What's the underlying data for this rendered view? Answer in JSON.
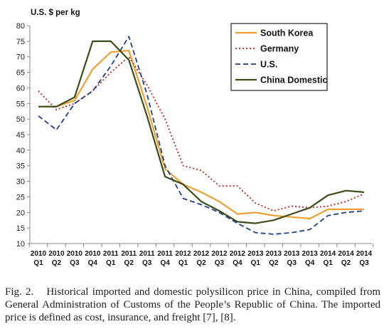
{
  "chart_data": {
    "type": "line",
    "ylabel": "U.S. $ per kg",
    "ylim": [
      10,
      80
    ],
    "yticks": [
      10,
      15,
      20,
      25,
      30,
      35,
      40,
      45,
      50,
      55,
      60,
      65,
      70,
      75,
      80
    ],
    "grid": "none",
    "legend_position": "top-right",
    "categories": [
      [
        "2010",
        "Q1"
      ],
      [
        "2010",
        "Q2"
      ],
      [
        "2010",
        "Q3"
      ],
      [
        "2010",
        "Q4"
      ],
      [
        "2011",
        "Q1"
      ],
      [
        "2011",
        "Q2"
      ],
      [
        "2011",
        "Q3"
      ],
      [
        "2011",
        "Q4"
      ],
      [
        "2012",
        "Q1"
      ],
      [
        "2012",
        "Q2"
      ],
      [
        "2012",
        "Q3"
      ],
      [
        "2012",
        "Q4"
      ],
      [
        "2013",
        "Q1"
      ],
      [
        "2013",
        "Q2"
      ],
      [
        "2013",
        "Q3"
      ],
      [
        "2013",
        "Q4"
      ],
      [
        "2014",
        "Q1"
      ],
      [
        "2014",
        "Q2"
      ],
      [
        "2014",
        "Q3"
      ]
    ],
    "series": [
      {
        "name": "South Korea",
        "color": "#f0a032",
        "dash": "solid",
        "values": [
          54,
          54,
          56,
          66,
          71.5,
          72,
          54,
          34,
          29,
          26.5,
          23.5,
          19.5,
          20,
          19,
          18.5,
          18,
          21,
          21,
          21
        ]
      },
      {
        "name": "Germany",
        "color": "#c0392b",
        "dash": "dotted",
        "values": [
          59,
          53,
          55,
          59,
          65,
          70,
          61,
          50,
          35,
          33.5,
          28.5,
          28.5,
          23,
          20.5,
          22,
          21.5,
          22,
          23.5,
          26
        ]
      },
      {
        "name": "U.S.",
        "color": "#1f3f8f",
        "dash": "dashed",
        "values": [
          51,
          46.5,
          55,
          59,
          67,
          76.5,
          58,
          35,
          24.5,
          22.5,
          20,
          16.5,
          13.5,
          13,
          13.5,
          14.5,
          19,
          20,
          20.5
        ]
      },
      {
        "name": "China Domestic",
        "color": "#3a4d1a",
        "dash": "solid",
        "values": [
          54,
          54,
          57,
          75,
          75,
          69,
          51,
          31.5,
          29,
          23.5,
          20.5,
          17,
          16.5,
          17.5,
          19.5,
          21.5,
          25.5,
          27,
          26.5
        ]
      }
    ]
  },
  "caption": {
    "label": "Fig. 2.",
    "text": "Historical imported and domestic polysilicon price in China, compiled from General Administration of Customs of the People’s Republic of China. The imported price is defined as cost, insurance, and freight [7], [8]."
  }
}
